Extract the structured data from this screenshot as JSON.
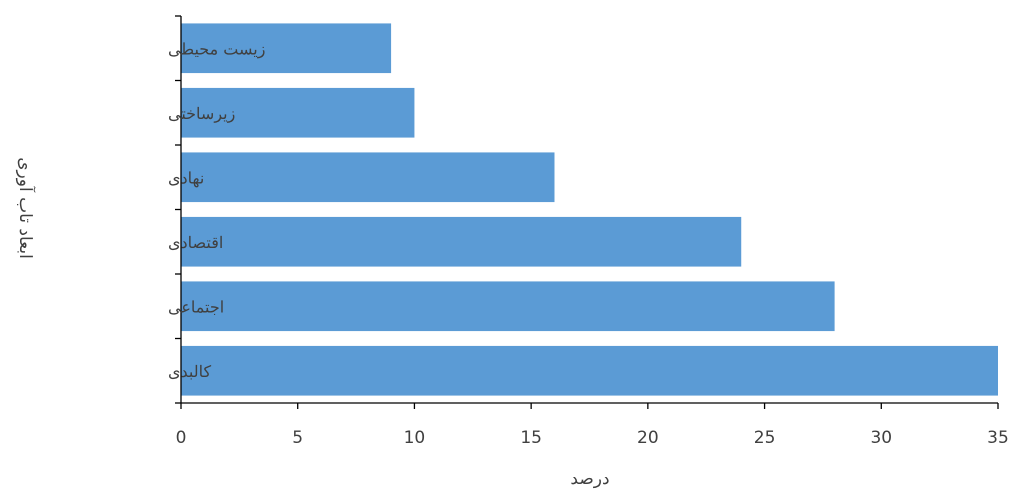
{
  "chart_data": {
    "type": "bar",
    "orientation": "horizontal",
    "categories": [
      "زیست محیطی",
      "زیرساختی",
      "نهادی",
      "اقتصادی",
      "اجتماعی",
      "کالبدی"
    ],
    "values": [
      9,
      10,
      16,
      24,
      28,
      35
    ],
    "xlabel": "درصد",
    "ylabel": "ابعاد تاب آوری",
    "xlim": [
      0,
      35
    ],
    "xticks": [
      "0",
      "5",
      "10",
      "15",
      "20",
      "25",
      "30",
      "35"
    ],
    "grid": false,
    "legend": "none",
    "bar_color": "#5B9BD5",
    "axis_color": "#000000"
  }
}
